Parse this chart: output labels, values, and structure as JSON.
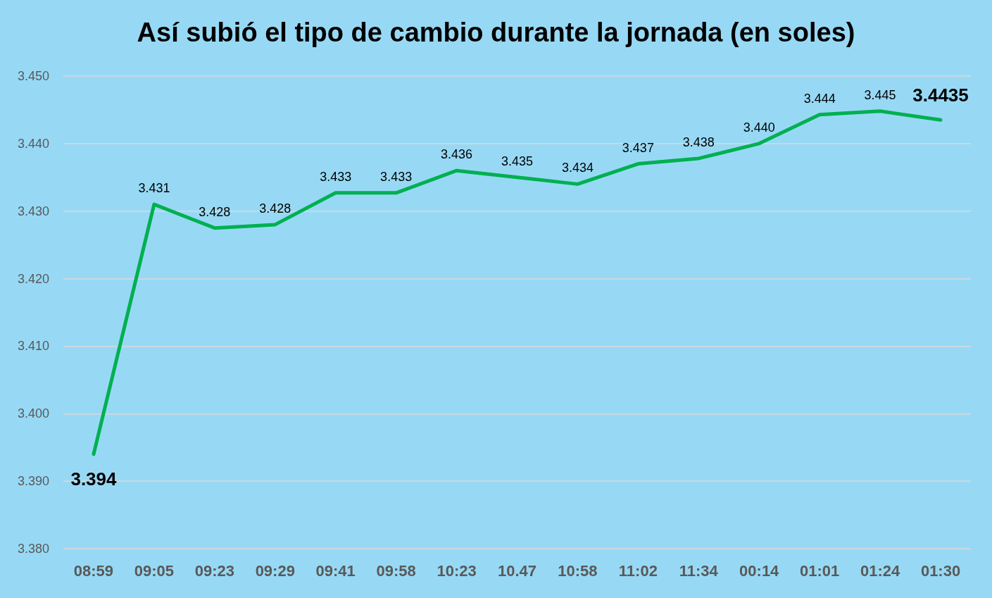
{
  "chart_data": {
    "type": "line",
    "title": "Así subió el tipo de cambio durante la jornada (en soles)",
    "categories": [
      "08:59",
      "09:05",
      "09:23",
      "09:29",
      "09:41",
      "09:58",
      "10:23",
      "10.47",
      "10:58",
      "11:02",
      "11:34",
      "00:14",
      "01:01",
      "01:24",
      "01:30"
    ],
    "series": [
      {
        "color": "#00b050",
        "values": [
          3.394,
          3.431,
          3.4275,
          3.428,
          3.4327,
          3.4327,
          3.436,
          3.435,
          3.434,
          3.437,
          3.4378,
          3.44,
          3.4443,
          3.4448,
          3.4435
        ],
        "value_labels": [
          "3.394",
          "3.431",
          "3.428",
          "3.428",
          "3.433",
          "3.433",
          "3.436",
          "3.435",
          "3.434",
          "3.437",
          "3.438",
          "3.440",
          "3.444",
          "3.445",
          "3.4435"
        ]
      }
    ],
    "ylim": [
      3.38,
      3.45
    ],
    "yticks": [
      {
        "value": 3.38,
        "label": "3.380"
      },
      {
        "value": 3.39,
        "label": "3.390"
      },
      {
        "value": 3.4,
        "label": "3.400"
      },
      {
        "value": 3.41,
        "label": "3.410"
      },
      {
        "value": 3.42,
        "label": "3.420"
      },
      {
        "value": 3.43,
        "label": "3.430"
      },
      {
        "value": 3.44,
        "label": "3.440"
      },
      {
        "value": 3.45,
        "label": "3.450"
      }
    ],
    "grid": "y",
    "marker": "none",
    "line_style": "solid"
  }
}
